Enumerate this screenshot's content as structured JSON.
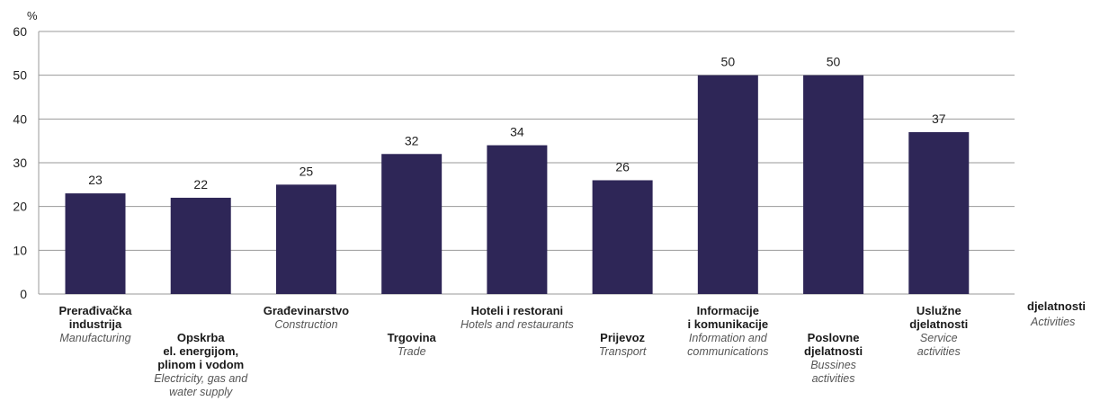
{
  "chart_data": {
    "type": "bar",
    "unit_label": "%",
    "categories": [
      {
        "hr": [
          "Prerađivačka",
          "industrija"
        ],
        "en": [
          "Manufacturing"
        ]
      },
      {
        "hr": [
          "Opskrba",
          "el. energijom,",
          "plinom i vodom"
        ],
        "en": [
          "Electricity, gas and",
          "water supply"
        ]
      },
      {
        "hr": [
          "Građevinarstvo"
        ],
        "en": [
          "Construction"
        ]
      },
      {
        "hr": [
          "Trgovina"
        ],
        "en": [
          "Trade"
        ]
      },
      {
        "hr": [
          "Hoteli i restorani"
        ],
        "en": [
          "Hotels and restaurants"
        ]
      },
      {
        "hr": [
          "Prijevoz"
        ],
        "en": [
          "Transport"
        ]
      },
      {
        "hr": [
          "Informacije",
          "i komunikacije"
        ],
        "en": [
          "Information and",
          "communications"
        ]
      },
      {
        "hr": [
          "Poslovne",
          "djelatnosti"
        ],
        "en": [
          "Bussines",
          "activities"
        ]
      },
      {
        "hr": [
          "Uslužne",
          "djelatnosti"
        ],
        "en": [
          "Service",
          "activities"
        ]
      }
    ],
    "values": [
      23,
      22,
      25,
      32,
      34,
      26,
      50,
      50,
      37
    ],
    "data_labels": [
      "23",
      "22",
      "25",
      "32",
      "34",
      "26",
      "50",
      "50",
      "37"
    ],
    "ylim": [
      0,
      60
    ],
    "yticks": [
      0,
      10,
      20,
      30,
      40,
      50,
      60
    ],
    "xlabel_hr": "djelatnosti",
    "xlabel_en": "Activities",
    "grid": true,
    "bar_color": "#2e2657",
    "grid_color": "#9a9a9a"
  }
}
